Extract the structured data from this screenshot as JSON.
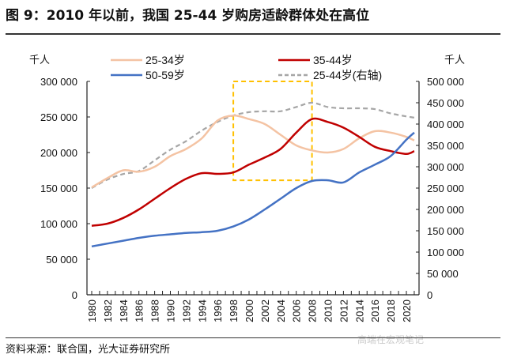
{
  "title": "图 9：2010 年以前，我国 25-44 岁购房适龄群体处在高位",
  "source": "资料来源：联合国，光大证券研究所",
  "watermark": "高端在宏观笔记",
  "chart_data": {
    "type": "line",
    "title": "",
    "y_unit_left": "千人",
    "y_unit_right": "千人",
    "ylim_left": [
      0,
      300000
    ],
    "ylim_right": [
      0,
      500000
    ],
    "yticks_left": [
      "0",
      "50 000",
      "100 000",
      "150 000",
      "200 000",
      "250 000",
      "300 000"
    ],
    "yticks_right": [
      "0",
      "50 000",
      "100 000",
      "150 000",
      "200 000",
      "250 000",
      "300 000",
      "350 000",
      "400 000",
      "450 000",
      "500 000"
    ],
    "xticks": [
      "1980",
      "1982",
      "1984",
      "1986",
      "1988",
      "1990",
      "1992",
      "1994",
      "1996",
      "1998",
      "2000",
      "2002",
      "2004",
      "2006",
      "2008",
      "2010",
      "2012",
      "2014",
      "2016",
      "2018",
      "2020"
    ],
    "x": [
      1980,
      1982,
      1984,
      1986,
      1988,
      1990,
      1992,
      1994,
      1996,
      1998,
      2000,
      2002,
      2004,
      2006,
      2008,
      2010,
      2012,
      2014,
      2016,
      2018,
      2020,
      2021
    ],
    "legend_position": "top",
    "grid": false,
    "series": [
      {
        "name": "25-34岁",
        "axis": "left",
        "color": "#f4c3a3",
        "dash": false,
        "values": [
          151000,
          164000,
          175000,
          173000,
          180000,
          195000,
          205000,
          220000,
          245000,
          252000,
          247000,
          240000,
          225000,
          210000,
          203000,
          200000,
          205000,
          220000,
          230000,
          228000,
          222000,
          217000
        ]
      },
      {
        "name": "35-44岁",
        "axis": "left",
        "color": "#c00000",
        "dash": false,
        "values": [
          97000,
          100000,
          108000,
          120000,
          135000,
          150000,
          163000,
          171000,
          170000,
          172000,
          183000,
          193000,
          205000,
          228000,
          247000,
          243000,
          235000,
          222000,
          208000,
          202000,
          198000,
          202000
        ]
      },
      {
        "name": "50-59岁",
        "axis": "left",
        "color": "#4472c4",
        "dash": false,
        "values": [
          68000,
          72000,
          76000,
          80000,
          83000,
          85000,
          87000,
          88000,
          90000,
          96000,
          106000,
          120000,
          135000,
          150000,
          160000,
          161000,
          158000,
          172000,
          183000,
          195000,
          218000,
          228000
        ]
      },
      {
        "name": "25-44岁(右轴)",
        "axis": "right",
        "color": "#a6a6a6",
        "dash": true,
        "values": [
          250000,
          270000,
          283000,
          290000,
          315000,
          340000,
          360000,
          385000,
          405000,
          420000,
          428000,
          430000,
          430000,
          440000,
          450000,
          440000,
          437000,
          437000,
          435000,
          425000,
          418000,
          415000
        ]
      }
    ],
    "highlight_box": {
      "x_range": [
        1998,
        2008
      ],
      "y_range_left": [
        161000,
        300000
      ],
      "color": "#ffc000"
    }
  }
}
